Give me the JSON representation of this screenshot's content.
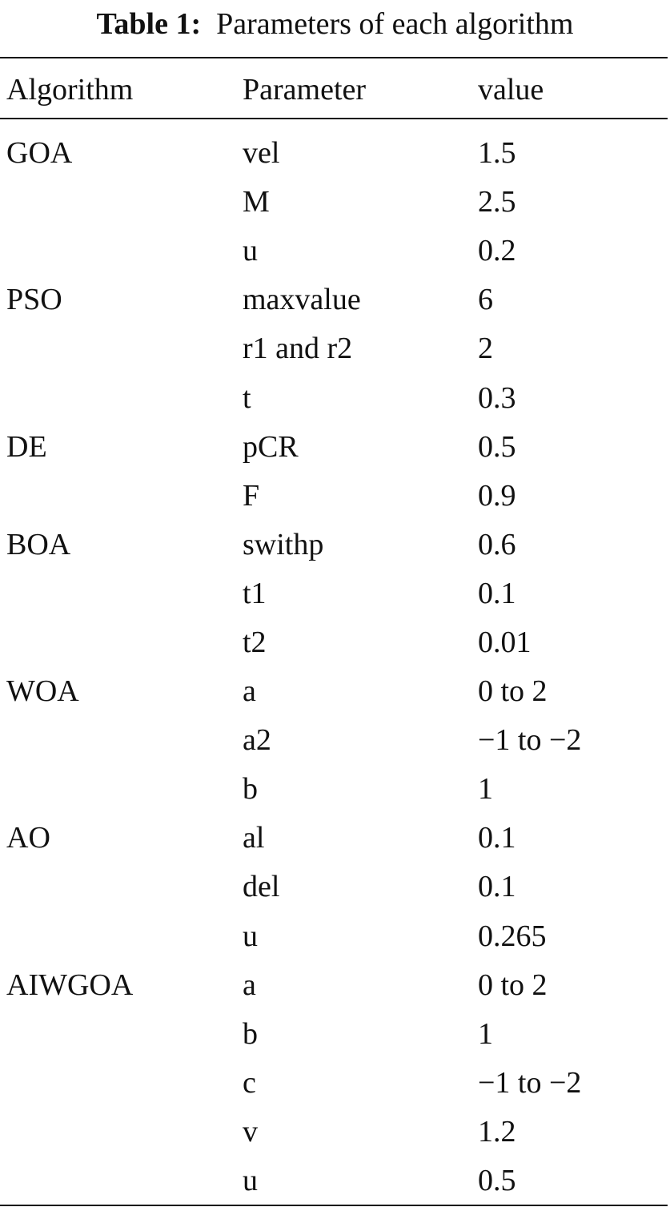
{
  "caption": {
    "label": "Table 1:",
    "text": "Parameters of each algorithm"
  },
  "headers": [
    "Algorithm",
    "Parameter",
    "value"
  ],
  "rows": [
    [
      "GOA",
      "vel",
      "1.5"
    ],
    [
      "",
      "M",
      "2.5"
    ],
    [
      "",
      "u",
      "0.2"
    ],
    [
      "PSO",
      "maxvalue",
      "6"
    ],
    [
      "",
      "r1 and r2",
      "2"
    ],
    [
      "",
      "t",
      "0.3"
    ],
    [
      "DE",
      "pCR",
      "0.5"
    ],
    [
      "",
      "F",
      "0.9"
    ],
    [
      "BOA",
      "swithp",
      "0.6"
    ],
    [
      "",
      "t1",
      "0.1"
    ],
    [
      "",
      "t2",
      "0.01"
    ],
    [
      "WOA",
      "a",
      "0 to 2"
    ],
    [
      "",
      "a2",
      "−1 to −2"
    ],
    [
      "",
      "b",
      "1"
    ],
    [
      "AO",
      "al",
      "0.1"
    ],
    [
      "",
      "del",
      "0.1"
    ],
    [
      "",
      "u",
      "0.265"
    ],
    [
      "AIWGOA",
      "a",
      "0 to 2"
    ],
    [
      "",
      "b",
      "1"
    ],
    [
      "",
      "c",
      "−1 to −2"
    ],
    [
      "",
      "v",
      "1.2"
    ],
    [
      "",
      "u",
      "0.5"
    ]
  ]
}
